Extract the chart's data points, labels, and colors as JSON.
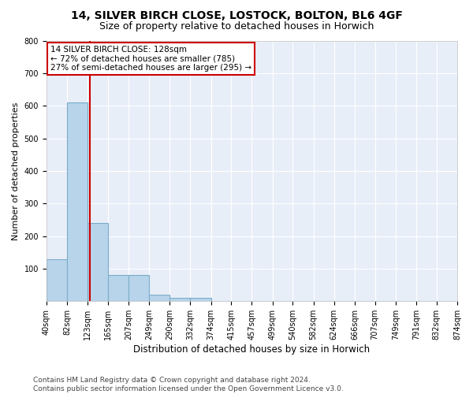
{
  "title": "14, SILVER BIRCH CLOSE, LOSTOCK, BOLTON, BL6 4GF",
  "subtitle": "Size of property relative to detached houses in Horwich",
  "xlabel": "Distribution of detached houses by size in Horwich",
  "ylabel": "Number of detached properties",
  "bin_edges": [
    40,
    82,
    123,
    165,
    207,
    249,
    290,
    332,
    374,
    415,
    457,
    499,
    540,
    582,
    624,
    666,
    707,
    749,
    791,
    832,
    874
  ],
  "bar_heights": [
    130,
    610,
    240,
    80,
    80,
    20,
    10,
    10,
    0,
    0,
    0,
    0,
    0,
    0,
    0,
    0,
    0,
    0,
    0,
    0
  ],
  "bar_color": "#b8d4ea",
  "bar_edge_color": "#7aaec8",
  "property_size": 128,
  "red_line_color": "#cc0000",
  "annotation_line1": "14 SILVER BIRCH CLOSE: 128sqm",
  "annotation_line2": "← 72% of detached houses are smaller (785)",
  "annotation_line3": "27% of semi-detached houses are larger (295) →",
  "annotation_box_color": "white",
  "annotation_box_edge_color": "#cc0000",
  "ylim": [
    0,
    800
  ],
  "yticks": [
    0,
    100,
    200,
    300,
    400,
    500,
    600,
    700,
    800
  ],
  "background_color": "#e8eef8",
  "grid_color": "white",
  "footer_line1": "Contains HM Land Registry data © Crown copyright and database right 2024.",
  "footer_line2": "Contains public sector information licensed under the Open Government Licence v3.0.",
  "title_fontsize": 10,
  "subtitle_fontsize": 9,
  "xlabel_fontsize": 8.5,
  "ylabel_fontsize": 8,
  "tick_fontsize": 7,
  "annotation_fontsize": 7.5,
  "footer_fontsize": 6.5
}
